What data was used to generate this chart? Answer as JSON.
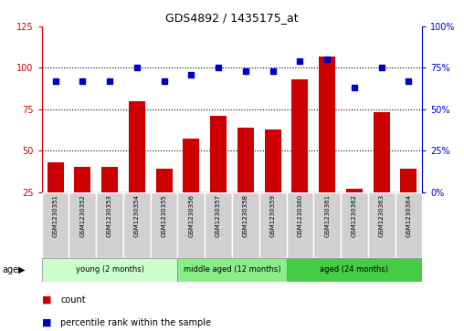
{
  "title": "GDS4892 / 1435175_at",
  "samples": [
    "GSM1230351",
    "GSM1230352",
    "GSM1230353",
    "GSM1230354",
    "GSM1230355",
    "GSM1230356",
    "GSM1230357",
    "GSM1230358",
    "GSM1230359",
    "GSM1230360",
    "GSM1230361",
    "GSM1230362",
    "GSM1230363",
    "GSM1230364"
  ],
  "count_values": [
    43,
    40,
    40,
    80,
    39,
    57,
    71,
    64,
    63,
    93,
    107,
    27,
    73,
    39
  ],
  "percentile_values": [
    67,
    67,
    67,
    75,
    67,
    71,
    75,
    73,
    73,
    79,
    80,
    63,
    75,
    67
  ],
  "ylim_left": [
    25,
    125
  ],
  "ylim_right": [
    0,
    100
  ],
  "yticks_left": [
    25,
    50,
    75,
    100,
    125
  ],
  "yticks_right": [
    0,
    25,
    50,
    75,
    100
  ],
  "yticklabels_right": [
    "0%",
    "25%",
    "50%",
    "75%",
    "100%"
  ],
  "bar_color": "#cc0000",
  "dot_color": "#0000cc",
  "dotted_line_color": "black",
  "axis_left_color": "#cc0000",
  "axis_right_color": "#0000cc",
  "legend_count": "count",
  "legend_percentile": "percentile rank within the sample",
  "group_configs": [
    {
      "label": "young (2 months)",
      "start": 0,
      "end": 4,
      "color": "#ccffcc"
    },
    {
      "label": "middle aged (12 months)",
      "start": 5,
      "end": 8,
      "color": "#88ee88"
    },
    {
      "label": "aged (24 months)",
      "start": 9,
      "end": 13,
      "color": "#44cc44"
    }
  ]
}
